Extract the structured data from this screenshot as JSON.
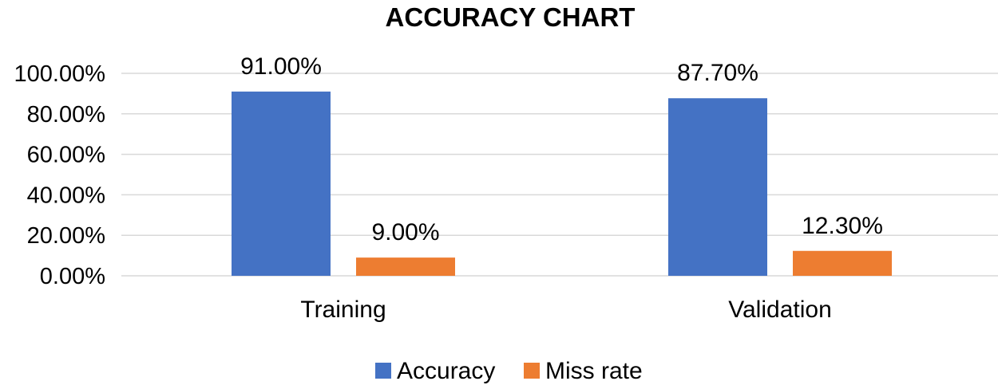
{
  "chart_data": {
    "type": "bar",
    "title": "ACCURACY CHART",
    "xlabel": "",
    "ylabel": "",
    "categories": [
      "Training",
      "Validation"
    ],
    "series": [
      {
        "name": "Accuracy",
        "color": "#4472c4",
        "values": [
          91.0,
          87.7
        ],
        "labels": [
          "91.00%",
          "87.70%"
        ]
      },
      {
        "name": "Miss rate",
        "color": "#ed7d31",
        "values": [
          9.0,
          12.3
        ],
        "labels": [
          "9.00%",
          "12.30%"
        ]
      }
    ],
    "ylim": [
      0,
      100
    ],
    "yticks": [
      0,
      20,
      40,
      60,
      80,
      100
    ],
    "ytick_labels": [
      "0.00%",
      "20.00%",
      "40.00%",
      "60.00%",
      "80.00%",
      "100.00%"
    ],
    "grid": true,
    "legend_position": "bottom"
  }
}
